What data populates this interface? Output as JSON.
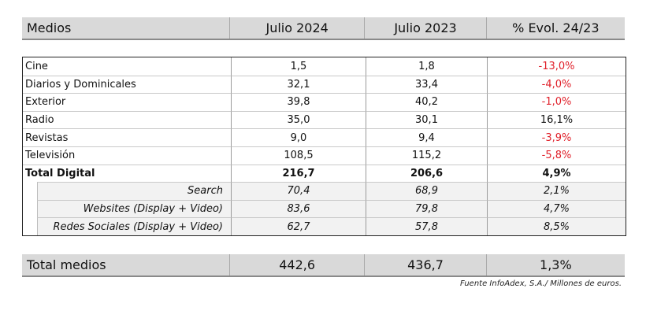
{
  "header": {
    "col1": "Medios",
    "col2": "Julio 2024",
    "col3": "Julio 2023",
    "col4": "% Evol. 24/23"
  },
  "rows": [
    {
      "label": "Cine",
      "v2024": "1,5",
      "v2023": "1,8",
      "evol": "-13,0%"
    },
    {
      "label": "Diarios y Dominicales",
      "v2024": "32,1",
      "v2023": "33,4",
      "evol": "-4,0%"
    },
    {
      "label": "Exterior",
      "v2024": "39,8",
      "v2023": "40,2",
      "evol": "-1,0%"
    },
    {
      "label": "Radio",
      "v2024": "35,0",
      "v2023": "30,1",
      "evol": "16,1%"
    },
    {
      "label": "Revistas",
      "v2024": "9,0",
      "v2023": "9,4",
      "evol": "-3,9%"
    },
    {
      "label": "Televisión",
      "v2024": "108,5",
      "v2023": "115,2",
      "evol": "-5,8%"
    },
    {
      "label": "Total Digital",
      "v2024": "216,7",
      "v2023": "206,6",
      "evol": "4,9%"
    }
  ],
  "subrows": [
    {
      "label": "Search",
      "v2024": "70,4",
      "v2023": "68,9",
      "evol": "2,1%"
    },
    {
      "label": "Websites (Display + Video)",
      "v2024": "83,6",
      "v2023": "79,8",
      "evol": "4,7%"
    },
    {
      "label": "Redes Sociales (Display + Video)",
      "v2024": "62,7",
      "v2023": "57,8",
      "evol": "8,5%"
    }
  ],
  "total": {
    "label": "Total medios",
    "v2024": "442,6",
    "v2023": "436,7",
    "evol": "1,3%"
  },
  "note": "Fuente InfoAdex, S.A./ Millones de euros.",
  "colors": {
    "header_bg": "#d9d9d9",
    "sub_bg": "#f2f2f2",
    "negative": "#e0202a"
  }
}
